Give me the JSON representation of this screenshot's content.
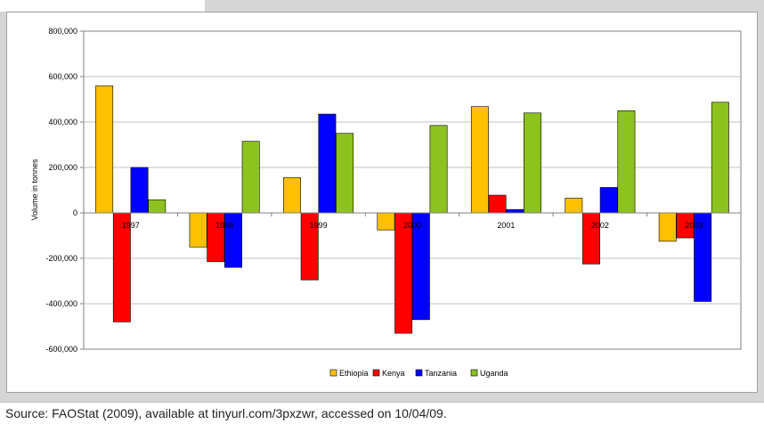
{
  "chart_data": {
    "type": "bar",
    "categories": [
      "1997",
      "1998",
      "1999",
      "2000",
      "2001",
      "2002",
      "2003"
    ],
    "series": [
      {
        "name": "Ethiopia",
        "color": "#FFC000",
        "values": [
          560000,
          -150000,
          155000,
          -75000,
          468000,
          65000,
          -125000
        ]
      },
      {
        "name": "Kenya",
        "color": "#FF0000",
        "values": [
          -480000,
          -215000,
          -295000,
          -530000,
          78000,
          -225000,
          -110000
        ]
      },
      {
        "name": "Tanzania",
        "color": "#0000FF",
        "values": [
          200000,
          -240000,
          435000,
          -470000,
          15000,
          112000,
          -390000
        ]
      },
      {
        "name": "Uganda",
        "color": "#8DC21F",
        "values": [
          58000,
          315000,
          350000,
          385000,
          440000,
          450000,
          487000
        ]
      }
    ],
    "ylabel": "Volume in tonnes",
    "xlabel": "",
    "title": "",
    "ylim": [
      -600000,
      800000
    ],
    "yticks": [
      800000,
      600000,
      400000,
      200000,
      0,
      -200000,
      -400000,
      -600000
    ],
    "ytick_labels": [
      "800,000",
      "600,000",
      "400,000",
      "200,000",
      "0",
      "-200,000",
      "-400,000",
      "-600,000"
    ],
    "grid": true,
    "legend_position": "bottom"
  },
  "source": "Source: FAOStat (2009), available at tinyurl.com/3pxzwr, accessed on 10/04/09."
}
